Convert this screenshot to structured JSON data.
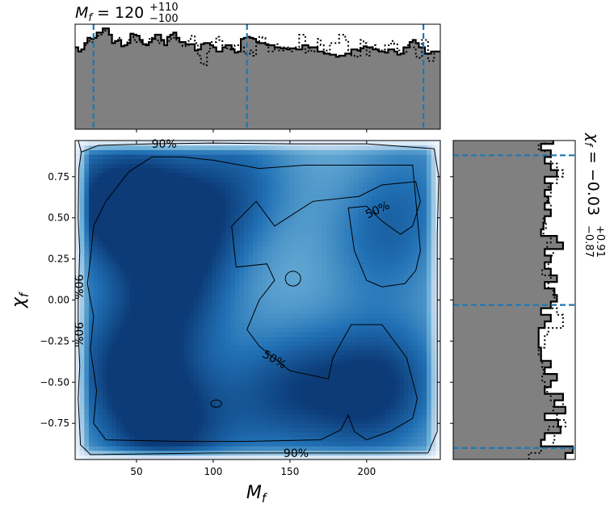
{
  "chart_data": [
    {
      "type": "histogram",
      "panel": "top-marginal",
      "title_main": "M",
      "title_sub": "f",
      "title_eq": " = 120",
      "title_sup": "+110",
      "title_inf": "−100",
      "xlim": [
        10,
        248
      ],
      "bins": [
        10,
        12,
        14,
        16,
        18,
        20,
        22,
        24,
        26,
        28,
        30,
        32,
        34,
        36,
        38,
        40,
        42,
        44,
        46,
        48,
        50,
        52,
        54,
        56,
        58,
        60,
        62,
        64,
        66,
        68,
        70,
        72,
        74,
        76,
        78,
        80,
        82,
        84,
        86,
        88,
        90,
        92,
        94,
        96,
        98,
        100,
        102,
        104,
        106,
        108,
        110,
        112,
        114,
        116,
        118,
        120,
        122,
        124,
        126,
        128,
        130,
        132,
        134,
        136,
        138,
        140,
        142,
        144,
        146,
        148,
        150,
        152,
        154,
        156,
        158,
        160,
        162,
        164,
        166,
        168,
        170,
        172,
        174,
        176,
        178,
        180,
        182,
        184,
        186,
        188,
        190,
        192,
        194,
        196,
        198,
        200,
        202,
        204,
        206,
        208,
        210,
        212,
        214,
        216,
        218,
        220,
        222,
        224,
        226,
        228,
        230,
        232,
        234,
        236,
        238,
        240,
        242,
        244,
        246,
        248
      ],
      "density_solid": [
        0.78,
        0.74,
        0.76,
        0.82,
        0.87,
        0.86,
        0.87,
        0.92,
        0.92,
        0.96,
        0.96,
        0.9,
        0.82,
        0.84,
        0.85,
        0.79,
        0.8,
        0.82,
        0.91,
        0.9,
        0.89,
        0.85,
        0.81,
        0.8,
        0.83,
        0.86,
        0.9,
        0.9,
        0.85,
        0.8,
        0.88,
        0.9,
        0.92,
        0.87,
        0.83,
        0.83,
        0.81,
        0.81,
        0.81,
        0.75,
        0.76,
        0.81,
        0.82,
        0.82,
        0.8,
        0.78,
        0.74,
        0.74,
        0.78,
        0.8,
        0.8,
        0.76,
        0.73,
        0.74,
        0.86,
        0.87,
        0.88,
        0.87,
        0.86,
        0.83,
        0.82,
        0.82,
        0.81,
        0.8,
        0.8,
        0.78,
        0.78,
        0.77,
        0.77,
        0.76,
        0.77,
        0.77,
        0.76,
        0.76,
        0.8,
        0.8,
        0.78,
        0.78,
        0.78,
        0.74,
        0.74,
        0.72,
        0.72,
        0.71,
        0.71,
        0.69,
        0.7,
        0.7,
        0.72,
        0.72,
        0.76,
        0.76,
        0.75,
        0.77,
        0.79,
        0.78,
        0.78,
        0.76,
        0.76,
        0.74,
        0.74,
        0.73,
        0.76,
        0.76,
        0.74,
        0.71,
        0.72,
        0.78,
        0.78,
        0.83,
        0.85,
        0.82,
        0.78,
        0.78,
        0.72,
        0.72,
        0.74,
        0.74,
        0.74
      ],
      "density_dotted": [
        0.78,
        0.74,
        0.76,
        0.8,
        0.84,
        0.83,
        0.87,
        0.89,
        0.9,
        0.94,
        0.96,
        0.9,
        0.82,
        0.84,
        0.87,
        0.79,
        0.8,
        0.85,
        0.88,
        0.85,
        0.83,
        0.83,
        0.81,
        0.81,
        0.86,
        0.87,
        0.86,
        0.82,
        0.84,
        0.8,
        0.84,
        0.86,
        0.87,
        0.84,
        0.83,
        0.79,
        0.8,
        0.86,
        0.89,
        0.82,
        0.7,
        0.62,
        0.61,
        0.74,
        0.83,
        0.83,
        0.88,
        0.85,
        0.8,
        0.77,
        0.76,
        0.77,
        0.8,
        0.8,
        0.78,
        0.72,
        0.72,
        0.75,
        0.7,
        0.82,
        0.88,
        0.87,
        0.8,
        0.74,
        0.74,
        0.81,
        0.75,
        0.75,
        0.78,
        0.78,
        0.74,
        0.78,
        0.78,
        0.9,
        0.9,
        0.73,
        0.77,
        0.74,
        0.75,
        0.86,
        0.8,
        0.73,
        0.75,
        0.82,
        0.82,
        0.82,
        0.9,
        0.9,
        0.85,
        0.75,
        0.7,
        0.69,
        0.69,
        0.85,
        0.82,
        0.7,
        0.78,
        0.8,
        0.75,
        0.75,
        0.76,
        0.8,
        0.8,
        0.84,
        0.81,
        0.75,
        0.75,
        0.72,
        0.8,
        0.78,
        0.78,
        0.69,
        0.68,
        0.85,
        0.85,
        0.65,
        0.65,
        0.74
      ],
      "ylim": [
        0,
        1
      ],
      "quantile_lines": [
        22,
        122,
        237
      ]
    },
    {
      "type": "heatmap",
      "panel": "joint",
      "xlabel_main": "M",
      "xlabel_sub": "f",
      "ylabel_main": "χ",
      "ylabel_sub": "f",
      "xlim": [
        10,
        248
      ],
      "ylim": [
        -0.97,
        0.97
      ],
      "xticks": [
        50,
        100,
        150,
        200
      ],
      "xticklabels": [
        "50",
        "100",
        "150",
        "200"
      ],
      "yticks": [
        0.75,
        0.5,
        0.25,
        0.0,
        -0.25,
        -0.5,
        -0.75
      ],
      "yticklabels": [
        "0.75",
        "0.50",
        "0.25",
        "0.00",
        "−0.25",
        "−0.50",
        "−0.75"
      ],
      "density_peaks": [
        {
          "x": 30,
          "y": 0.6,
          "w": 1.0
        },
        {
          "x": 55,
          "y": 0.55,
          "w": 1.0
        },
        {
          "x": 75,
          "y": 0.0,
          "w": 1.0
        },
        {
          "x": 90,
          "y": 0.45,
          "w": 0.8
        },
        {
          "x": 40,
          "y": -0.35,
          "w": 0.95
        },
        {
          "x": 55,
          "y": -0.7,
          "w": 0.8
        },
        {
          "x": 80,
          "y": -0.8,
          "w": 0.85
        },
        {
          "x": 120,
          "y": 0.75,
          "w": 0.7
        },
        {
          "x": 135,
          "y": -0.6,
          "w": 0.65
        },
        {
          "x": 165,
          "y": -0.5,
          "w": 0.7
        },
        {
          "x": 210,
          "y": 0.35,
          "w": 0.75
        },
        {
          "x": 215,
          "y": -0.45,
          "w": 0.9
        },
        {
          "x": 200,
          "y": -0.7,
          "w": 0.6
        },
        {
          "x": 230,
          "y": 0.75,
          "w": 0.5
        }
      ],
      "contours": [
        {
          "level_label": "90%",
          "points": [
            [
              12,
              0.97
            ],
            [
              14,
              0.9
            ],
            [
              12.5,
              0.8
            ],
            [
              12,
              0.5
            ],
            [
              13,
              0.3
            ],
            [
              12,
              0.0
            ],
            [
              12,
              -0.2
            ],
            [
              13,
              -0.4
            ],
            [
              12,
              -0.6
            ],
            [
              13.5,
              -0.88
            ],
            [
              20,
              -0.94
            ],
            [
              100,
              -0.93
            ],
            [
              160,
              -0.93
            ],
            [
              240,
              -0.93
            ],
            [
              246,
              -0.8
            ],
            [
              246,
              -0.4
            ],
            [
              246,
              0.0
            ],
            [
              246,
              0.4
            ],
            [
              247,
              0.75
            ],
            [
              244,
              0.92
            ],
            [
              200,
              0.95
            ],
            [
              150,
              0.95
            ],
            [
              100,
              0.955
            ],
            [
              60,
              0.95
            ],
            [
              25,
              0.94
            ],
            [
              14,
              0.9
            ]
          ]
        },
        {
          "level_label": "50%",
          "points": [
            [
              20,
              0.25
            ],
            [
              18,
              0.1
            ],
            [
              22,
              -0.1
            ],
            [
              20,
              -0.3
            ],
            [
              24,
              -0.55
            ],
            [
              22,
              -0.75
            ],
            [
              30,
              -0.85
            ],
            [
              80,
              -0.86
            ],
            [
              120,
              -0.86
            ],
            [
              170,
              -0.85
            ],
            [
              183,
              -0.79
            ],
            [
              188,
              -0.7
            ],
            [
              192,
              -0.8
            ],
            [
              200,
              -0.85
            ],
            [
              215,
              -0.8
            ],
            [
              230,
              -0.72
            ],
            [
              233,
              -0.6
            ],
            [
              226,
              -0.35
            ],
            [
              210,
              -0.15
            ],
            [
              190,
              -0.15
            ],
            [
              178,
              -0.35
            ],
            [
              175,
              -0.48
            ],
            [
              150,
              -0.43
            ],
            [
              130,
              -0.28
            ],
            [
              122,
              -0.18
            ],
            [
              130,
              0.0
            ],
            [
              140,
              0.12
            ],
            [
              135,
              0.22
            ],
            [
              115,
              0.2
            ],
            [
              112,
              0.45
            ],
            [
              128,
              0.6
            ],
            [
              140,
              0.45
            ],
            [
              165,
              0.6
            ],
            [
              195,
              0.63
            ],
            [
              210,
              0.7
            ],
            [
              232,
              0.72
            ],
            [
              235,
              0.6
            ],
            [
              230,
              0.45
            ],
            [
              222,
              0.4
            ],
            [
              210,
              0.48
            ],
            [
              200,
              0.57
            ],
            [
              188,
              0.56
            ],
            [
              192,
              0.3
            ],
            [
              200,
              0.12
            ],
            [
              210,
              0.08
            ],
            [
              225,
              0.1
            ],
            [
              232,
              0.18
            ],
            [
              235,
              0.3
            ],
            [
              230,
              0.82
            ],
            [
              200,
              0.82
            ],
            [
              160,
              0.82
            ],
            [
              130,
              0.8
            ],
            [
              100,
              0.85
            ],
            [
              80,
              0.87
            ],
            [
              60,
              0.87
            ],
            [
              45,
              0.78
            ],
            [
              30,
              0.6
            ],
            [
              22,
              0.45
            ],
            [
              20,
              0.25
            ]
          ]
        }
      ],
      "small_contours": [
        {
          "cx": 152,
          "cy": 0.13,
          "rx": 5,
          "ry": 0.045
        },
        {
          "cx": 102,
          "cy": -0.63,
          "rx": 3.5,
          "ry": 0.022
        }
      ],
      "contour_labels": [
        {
          "text": "90%",
          "x": 68,
          "y": 0.95,
          "angle": 0
        },
        {
          "text": "90%",
          "x": 12.5,
          "y": 0.08,
          "angle": 90
        },
        {
          "text": "90%",
          "x": 12.5,
          "y": -0.21,
          "angle": 90
        },
        {
          "text": "50%",
          "x": 207,
          "y": 0.55,
          "angle": -25
        },
        {
          "text": "50%",
          "x": 140,
          "y": -0.36,
          "angle": 30
        },
        {
          "text": "90%",
          "x": 154,
          "y": -0.93,
          "angle": 0
        }
      ]
    },
    {
      "type": "histogram",
      "panel": "right-marginal",
      "orientation": "horizontal",
      "label_main": "χ",
      "label_sub": "f",
      "label_eq": " = −0.03",
      "label_sup": "+0.91",
      "label_inf": "−0.87",
      "ylim": [
        -0.97,
        0.97
      ],
      "bins": [
        -0.97,
        -0.93,
        -0.89,
        -0.85,
        -0.81,
        -0.77,
        -0.73,
        -0.69,
        -0.65,
        -0.61,
        -0.57,
        -0.53,
        -0.49,
        -0.45,
        -0.41,
        -0.37,
        -0.33,
        -0.29,
        -0.25,
        -0.21,
        -0.17,
        -0.13,
        -0.09,
        -0.05,
        -0.01,
        0.03,
        0.07,
        0.11,
        0.15,
        0.19,
        0.23,
        0.27,
        0.31,
        0.35,
        0.39,
        0.43,
        0.47,
        0.51,
        0.55,
        0.59,
        0.63,
        0.67,
        0.71,
        0.75,
        0.79,
        0.83,
        0.87,
        0.91,
        0.95,
        0.97
      ],
      "density_solid": [
        0.92,
        0.98,
        0.72,
        0.75,
        0.88,
        0.86,
        0.75,
        0.92,
        0.83,
        0.9,
        0.75,
        0.8,
        0.85,
        0.75,
        0.8,
        0.72,
        0.72,
        0.7,
        0.7,
        0.7,
        0.75,
        0.8,
        0.72,
        0.8,
        0.85,
        0.83,
        0.75,
        0.85,
        0.8,
        0.75,
        0.8,
        0.75,
        0.9,
        0.85,
        0.72,
        0.74,
        0.75,
        0.8,
        0.75,
        0.78,
        0.75,
        0.8,
        0.75,
        0.85,
        0.8,
        0.75,
        0.8,
        0.72,
        0.82
      ],
      "density_dotted": [
        0.62,
        0.72,
        0.82,
        0.83,
        0.78,
        0.92,
        0.85,
        0.82,
        0.9,
        0.8,
        0.77,
        0.75,
        0.73,
        0.74,
        0.73,
        0.72,
        0.7,
        0.75,
        0.75,
        0.78,
        0.9,
        0.9,
        0.85,
        0.8,
        0.83,
        0.82,
        0.78,
        0.8,
        0.73,
        0.78,
        0.8,
        0.82,
        0.77,
        0.8,
        0.74,
        0.76,
        0.74,
        0.8,
        0.8,
        0.77,
        0.8,
        0.78,
        0.85,
        0.9,
        0.85,
        0.8,
        0.75,
        0.7,
        0.75
      ],
      "xlim": [
        0,
        1
      ],
      "quantile_lines": [
        -0.9,
        -0.03,
        0.88
      ]
    }
  ],
  "colors": {
    "fill": "#808080",
    "quantile": "#1f77b4",
    "cmap_low": "#f7fbff",
    "cmap_high": "#08306b"
  }
}
